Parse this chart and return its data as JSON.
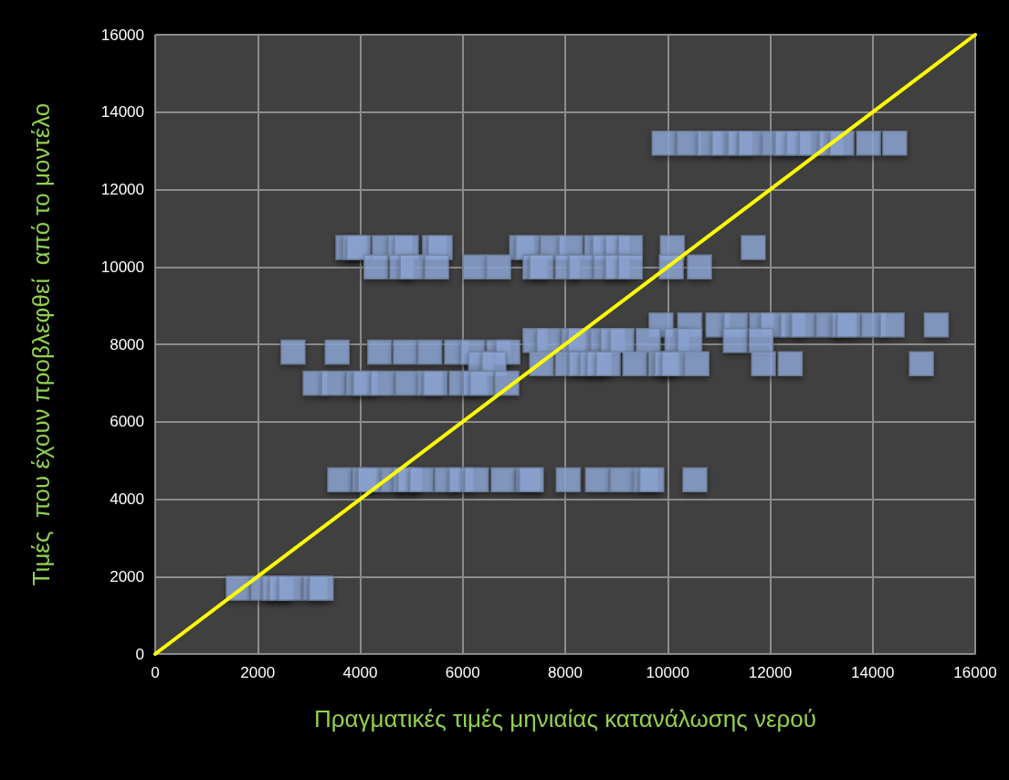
{
  "chart_data": {
    "type": "scatter",
    "xlabel": "Πραγματικές τιμές μηνιαίας κατανάλωσης νερού",
    "ylabel": "Τιμές  που έχουν προβλεφθεί  από το μοντέλο",
    "xlim": [
      0,
      16000
    ],
    "ylim": [
      0,
      16000
    ],
    "xticks": [
      0,
      2000,
      4000,
      6000,
      8000,
      10000,
      12000,
      14000,
      16000
    ],
    "yticks": [
      0,
      2000,
      4000,
      6000,
      8000,
      10000,
      12000,
      14000,
      16000
    ],
    "grid": true,
    "marker": "square",
    "series": [
      {
        "color": "#8fa8d6",
        "x": [
          9930,
          10410,
          10820,
          11100,
          11410,
          11620,
          12080,
          12330,
          12550,
          12800,
          13190,
          13400,
          13920,
          14430,
          3760,
          3890,
          3970,
          4470,
          4780,
          4900,
          5450,
          5560,
          7150,
          7270,
          7750,
          8110,
          8610,
          8770,
          9020,
          9270,
          10090,
          11670,
          4310,
          4810,
          5010,
          5490,
          6240,
          6700,
          7410,
          7540,
          8040,
          8310,
          8790,
          9020,
          9270,
          10070,
          10620,
          9870,
          10430,
          10980,
          11330,
          11830,
          12050,
          12440,
          12650,
          13130,
          13440,
          13540,
          14020,
          14380,
          15240,
          7410,
          7680,
          8160,
          8290,
          8730,
          8930,
          9110,
          9620,
          10180,
          10430,
          11320,
          11820,
          2690,
          3550,
          4380,
          4880,
          5360,
          5880,
          6200,
          6700,
          6880,
          6350,
          6610,
          7540,
          8040,
          8310,
          8520,
          8660,
          8840,
          9360,
          9860,
          9980,
          10120,
          10570,
          11870,
          12390,
          14950,
          3120,
          3480,
          3960,
          4100,
          4440,
          4920,
          5360,
          5470,
          5970,
          6240,
          6380,
          6860,
          3600,
          4080,
          4190,
          4650,
          4880,
          4970,
          5200,
          5690,
          5970,
          6270,
          6790,
          7270,
          7340,
          8060,
          8630,
          9110,
          9570,
          9690,
          10530,
          1620,
          2100,
          2330,
          2460,
          2640,
          3120,
          3240
        ],
        "values": [
          13200,
          13200,
          13200,
          13200,
          13200,
          13200,
          13200,
          13200,
          13200,
          13200,
          13200,
          13200,
          13200,
          13200,
          10500,
          10500,
          10500,
          10500,
          10500,
          10500,
          10500,
          10500,
          10500,
          10500,
          10500,
          10500,
          10500,
          10500,
          10500,
          10500,
          10500,
          10500,
          10000,
          10000,
          10000,
          10000,
          10000,
          10000,
          10000,
          10000,
          10000,
          10000,
          10000,
          10000,
          10000,
          10000,
          10000,
          8500,
          8500,
          8500,
          8500,
          8500,
          8500,
          8500,
          8500,
          8500,
          8500,
          8500,
          8500,
          8500,
          8500,
          8100,
          8100,
          8100,
          8100,
          8100,
          8100,
          8100,
          8100,
          8100,
          8100,
          8100,
          8100,
          7800,
          7800,
          7800,
          7800,
          7800,
          7800,
          7800,
          7800,
          7800,
          7500,
          7500,
          7500,
          7500,
          7500,
          7500,
          7500,
          7500,
          7500,
          7500,
          7500,
          7500,
          7500,
          7500,
          7500,
          7500,
          7000,
          7000,
          7000,
          7000,
          7000,
          7000,
          7000,
          7000,
          7000,
          7000,
          7000,
          7000,
          4500,
          4500,
          4500,
          4500,
          4500,
          4500,
          4500,
          4500,
          4500,
          4500,
          4500,
          4500,
          4500,
          4500,
          4500,
          4500,
          4500,
          4500,
          4500,
          1700,
          1700,
          1700,
          1700,
          1700,
          1700,
          1700
        ]
      },
      {
        "type": "line",
        "color": "#ffff00",
        "marker": "none",
        "x": [
          0,
          16000
        ],
        "values": [
          0,
          16000
        ]
      }
    ]
  }
}
